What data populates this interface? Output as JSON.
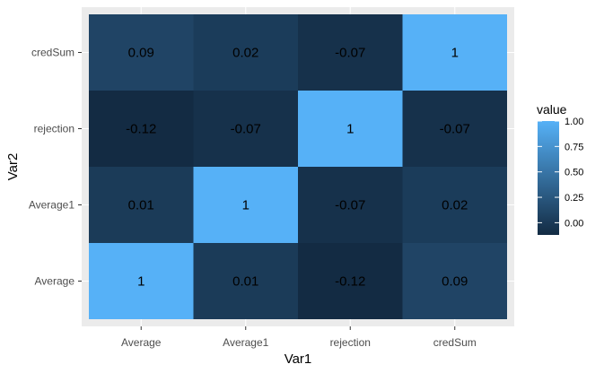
{
  "chart_data": {
    "type": "heatmap",
    "xlabel": "Var1",
    "ylabel": "Var2",
    "x_categories": [
      "Average",
      "Average1",
      "rejection",
      "credSum"
    ],
    "y_categories": [
      "Average",
      "Average1",
      "rejection",
      "credSum"
    ],
    "values": [
      [
        1,
        0.01,
        -0.12,
        0.09
      ],
      [
        0.01,
        1,
        -0.07,
        0.02
      ],
      [
        -0.12,
        -0.07,
        1,
        -0.07
      ],
      [
        0.09,
        0.02,
        -0.07,
        1
      ]
    ],
    "value_labels": [
      [
        "1",
        "0.01",
        "-0.12",
        "0.09"
      ],
      [
        "0.01",
        "1",
        "-0.07",
        "0.02"
      ],
      [
        "-0.12",
        "-0.07",
        "1",
        "-0.07"
      ],
      [
        "0.09",
        "0.02",
        "-0.07",
        "1"
      ]
    ],
    "legend": {
      "title": "value",
      "placement": "right",
      "range": [
        -0.12,
        1
      ],
      "ticks": [
        1.0,
        0.75,
        0.5,
        0.25,
        0.0
      ],
      "tick_labels": [
        "1.00",
        "0.75",
        "0.50",
        "0.25",
        "0.00"
      ],
      "low_color": "#132b43",
      "high_color": "#56b1f7"
    },
    "panel_background": "#ebebeb",
    "grid": true
  }
}
